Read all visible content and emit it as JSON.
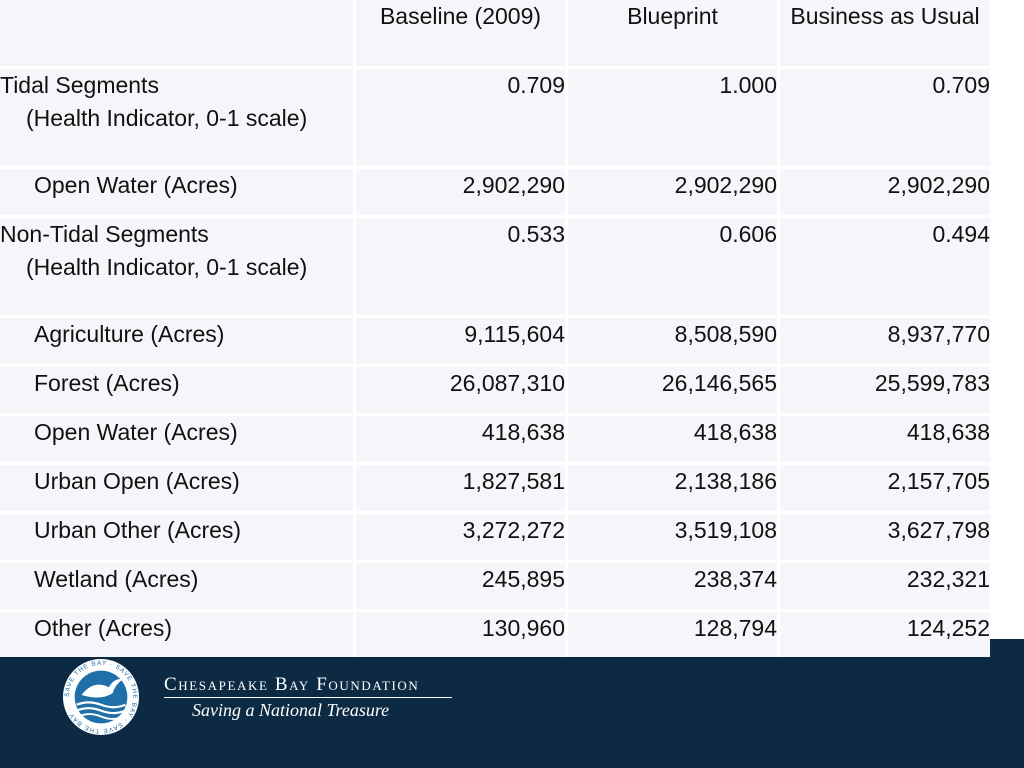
{
  "table": {
    "headers": [
      "",
      "Baseline (2009)",
      "Blueprint",
      "Business as Usual"
    ],
    "rows": [
      {
        "label": "Tidal Segments",
        "sub": "(Health Indicator, 0-1 scale)",
        "values": [
          "0.709",
          "1.000",
          "0.709"
        ]
      },
      {
        "label": "Open Water (Acres)",
        "values": [
          "2,902,290",
          "2,902,290",
          "2,902,290"
        ]
      },
      {
        "label": "Non-Tidal Segments",
        "sub": "(Health Indicator, 0-1 scale)",
        "values": [
          "0.533",
          "0.606",
          "0.494"
        ]
      },
      {
        "label": "Agriculture (Acres)",
        "values": [
          "9,115,604",
          "8,508,590",
          "8,937,770"
        ]
      },
      {
        "label": "Forest (Acres)",
        "values": [
          "26,087,310",
          "26,146,565",
          "25,599,783"
        ]
      },
      {
        "label": "Open Water (Acres)",
        "values": [
          "418,638",
          "418,638",
          "418,638"
        ]
      },
      {
        "label": "Urban Open (Acres)",
        "values": [
          "1,827,581",
          "2,138,186",
          "2,157,705"
        ]
      },
      {
        "label": "Urban Other (Acres)",
        "values": [
          "3,272,272",
          "3,519,108",
          "3,627,798"
        ]
      },
      {
        "label": "Wetland (Acres)",
        "values": [
          "245,895",
          "238,374",
          "232,321"
        ]
      },
      {
        "label": "Other (Acres)",
        "values": [
          "130,960",
          "128,794",
          "124,252"
        ]
      }
    ]
  },
  "footer": {
    "org_name": "Chesapeake Bay Foundation",
    "tagline": "Saving a National Treasure",
    "logo_ring_text": "SAVE THE BAY · SAVE THE BAY · SAVE THE BAY ·",
    "logo_icon": "bird-over-water-logo-icon"
  },
  "colors": {
    "cell_background": "#f4f6f9",
    "footer_navy": "#0d2a44",
    "logo_blue": "#1f6fa8"
  }
}
